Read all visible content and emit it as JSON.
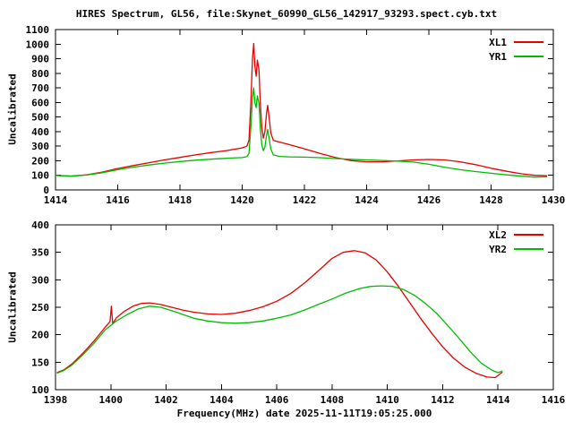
{
  "title": "HIRES Spectrum, GL56, file:Skynet_60990_GL56_142917_93293.spect.cyb.txt",
  "xlabel": "Frequency(MHz) date 2025-11-11T19:05:25.000",
  "colors": {
    "xl": "#e60000",
    "yr": "#00bb00",
    "axis": "#000000",
    "background": "#ffffff"
  },
  "chart_data": [
    {
      "type": "line",
      "panel": "top",
      "ylabel": "Uncalibrated",
      "xlim": [
        1414,
        1430
      ],
      "ylim": [
        0,
        1100
      ],
      "xticks": [
        1414,
        1416,
        1418,
        1420,
        1422,
        1424,
        1426,
        1428,
        1430
      ],
      "yticks": [
        0,
        100,
        200,
        300,
        400,
        500,
        600,
        700,
        800,
        900,
        1000,
        1100
      ],
      "grid": false,
      "legend_position": "top-right",
      "legend": [
        {
          "label": "XL1",
          "color": "#e60000"
        },
        {
          "label": "YR1",
          "color": "#00bb00"
        }
      ],
      "series": [
        {
          "name": "XL1",
          "color": "#e60000",
          "points": [
            [
              1414.0,
              100
            ],
            [
              1414.25,
              97
            ],
            [
              1414.5,
              95
            ],
            [
              1415,
              104
            ],
            [
              1415.5,
              122
            ],
            [
              1416,
              147
            ],
            [
              1416.5,
              167
            ],
            [
              1417,
              187
            ],
            [
              1417.5,
              206
            ],
            [
              1418,
              223
            ],
            [
              1418.5,
              240
            ],
            [
              1419,
              256
            ],
            [
              1419.5,
              270
            ],
            [
              1420.0,
              288
            ],
            [
              1420.15,
              300
            ],
            [
              1420.22,
              340
            ],
            [
              1420.28,
              600
            ],
            [
              1420.33,
              900
            ],
            [
              1420.37,
              1005
            ],
            [
              1420.41,
              850
            ],
            [
              1420.45,
              780
            ],
            [
              1420.49,
              890
            ],
            [
              1420.54,
              820
            ],
            [
              1420.58,
              600
            ],
            [
              1420.63,
              430
            ],
            [
              1420.68,
              355
            ],
            [
              1420.73,
              400
            ],
            [
              1420.78,
              520
            ],
            [
              1420.82,
              580
            ],
            [
              1420.87,
              490
            ],
            [
              1420.92,
              390
            ],
            [
              1421.0,
              340
            ],
            [
              1421.2,
              328
            ],
            [
              1421.5,
              312
            ],
            [
              1422,
              282
            ],
            [
              1422.5,
              250
            ],
            [
              1423,
              222
            ],
            [
              1423.5,
              201
            ],
            [
              1424,
              193
            ],
            [
              1424.5,
              193
            ],
            [
              1425,
              199
            ],
            [
              1425.5,
              206
            ],
            [
              1426,
              209
            ],
            [
              1426.5,
              206
            ],
            [
              1427,
              193
            ],
            [
              1427.5,
              173
            ],
            [
              1428,
              149
            ],
            [
              1428.5,
              128
            ],
            [
              1429,
              110
            ],
            [
              1429.4,
              100
            ],
            [
              1429.8,
              97
            ]
          ]
        },
        {
          "name": "YR1",
          "color": "#00bb00",
          "points": [
            [
              1414.0,
              99
            ],
            [
              1414.25,
              96
            ],
            [
              1414.5,
              94
            ],
            [
              1415,
              102
            ],
            [
              1415.5,
              118
            ],
            [
              1416,
              139
            ],
            [
              1416.5,
              156
            ],
            [
              1417,
              171
            ],
            [
              1417.5,
              184
            ],
            [
              1418,
              195
            ],
            [
              1418.5,
              204
            ],
            [
              1419,
              211
            ],
            [
              1419.5,
              217
            ],
            [
              1420.0,
              222
            ],
            [
              1420.15,
              228
            ],
            [
              1420.22,
              250
            ],
            [
              1420.28,
              430
            ],
            [
              1420.33,
              630
            ],
            [
              1420.37,
              700
            ],
            [
              1420.41,
              600
            ],
            [
              1420.45,
              565
            ],
            [
              1420.49,
              645
            ],
            [
              1420.54,
              590
            ],
            [
              1420.58,
              430
            ],
            [
              1420.63,
              310
            ],
            [
              1420.68,
              270
            ],
            [
              1420.73,
              295
            ],
            [
              1420.78,
              370
            ],
            [
              1420.82,
              415
            ],
            [
              1420.87,
              350
            ],
            [
              1420.92,
              280
            ],
            [
              1421.0,
              240
            ],
            [
              1421.2,
              230
            ],
            [
              1421.5,
              227
            ],
            [
              1422,
              225
            ],
            [
              1422.5,
              221
            ],
            [
              1423,
              215
            ],
            [
              1423.7,
              208
            ],
            [
              1424.5,
              202
            ],
            [
              1425,
              198
            ],
            [
              1425.5,
              191
            ],
            [
              1426,
              176
            ],
            [
              1426.5,
              156
            ],
            [
              1427,
              139
            ],
            [
              1427.5,
              126
            ],
            [
              1428,
              114
            ],
            [
              1428.5,
              103
            ],
            [
              1429,
              94
            ],
            [
              1429.4,
              88
            ],
            [
              1429.8,
              90
            ]
          ]
        }
      ]
    },
    {
      "type": "line",
      "panel": "bottom",
      "ylabel": "Uncalibrated",
      "xlim": [
        1398,
        1416
      ],
      "ylim": [
        100,
        400
      ],
      "xticks": [
        1398,
        1400,
        1402,
        1404,
        1406,
        1408,
        1410,
        1412,
        1414,
        1416
      ],
      "yticks": [
        100,
        150,
        200,
        250,
        300,
        350,
        400
      ],
      "grid": false,
      "legend_position": "top-right",
      "legend": [
        {
          "label": "XL2",
          "color": "#e60000"
        },
        {
          "label": "YR2",
          "color": "#00bb00"
        }
      ],
      "series": [
        {
          "name": "XL2",
          "color": "#e60000",
          "points": [
            [
              1398.05,
              131
            ],
            [
              1398.3,
              136
            ],
            [
              1398.6,
              147
            ],
            [
              1399,
              167
            ],
            [
              1399.4,
              189
            ],
            [
              1399.8,
              214
            ],
            [
              1399.97,
              224
            ],
            [
              1400.02,
              252
            ],
            [
              1400.07,
              220
            ],
            [
              1400.2,
              231
            ],
            [
              1400.5,
              243
            ],
            [
              1400.8,
              252
            ],
            [
              1401.1,
              257
            ],
            [
              1401.4,
              258
            ],
            [
              1401.8,
              255
            ],
            [
              1402.2,
              250
            ],
            [
              1402.6,
              245
            ],
            [
              1403,
              241
            ],
            [
              1403.5,
              238
            ],
            [
              1404,
              237
            ],
            [
              1404.5,
              239
            ],
            [
              1405,
              244
            ],
            [
              1405.5,
              251
            ],
            [
              1406,
              261
            ],
            [
              1406.5,
              275
            ],
            [
              1407,
              294
            ],
            [
              1407.5,
              316
            ],
            [
              1408,
              339
            ],
            [
              1408.4,
              350
            ],
            [
              1408.8,
              353
            ],
            [
              1409.2,
              349
            ],
            [
              1409.6,
              336
            ],
            [
              1410,
              314
            ],
            [
              1410.4,
              288
            ],
            [
              1410.8,
              259
            ],
            [
              1411.2,
              230
            ],
            [
              1411.6,
              203
            ],
            [
              1412,
              178
            ],
            [
              1412.4,
              157
            ],
            [
              1412.8,
              141
            ],
            [
              1413.2,
              130
            ],
            [
              1413.6,
              123
            ],
            [
              1413.9,
              122
            ],
            [
              1414.16,
              132
            ]
          ]
        },
        {
          "name": "YR2",
          "color": "#00bb00",
          "points": [
            [
              1398.05,
              130
            ],
            [
              1398.3,
              135
            ],
            [
              1398.6,
              145
            ],
            [
              1399,
              164
            ],
            [
              1399.4,
              185
            ],
            [
              1399.8,
              209
            ],
            [
              1400.2,
              225
            ],
            [
              1400.6,
              237
            ],
            [
              1401,
              247
            ],
            [
              1401.4,
              252
            ],
            [
              1401.8,
              250
            ],
            [
              1402.2,
              244
            ],
            [
              1402.6,
              237
            ],
            [
              1403,
              230
            ],
            [
              1403.5,
              225
            ],
            [
              1404,
              222
            ],
            [
              1404.5,
              221
            ],
            [
              1405,
              222
            ],
            [
              1405.5,
              225
            ],
            [
              1406,
              230
            ],
            [
              1406.5,
              236
            ],
            [
              1407,
              245
            ],
            [
              1407.5,
              255
            ],
            [
              1408,
              265
            ],
            [
              1408.5,
              276
            ],
            [
              1409,
              284
            ],
            [
              1409.4,
              288
            ],
            [
              1409.8,
              289
            ],
            [
              1410.2,
              288
            ],
            [
              1410.6,
              282
            ],
            [
              1411,
              271
            ],
            [
              1411.4,
              256
            ],
            [
              1411.8,
              238
            ],
            [
              1412.2,
              216
            ],
            [
              1412.6,
              193
            ],
            [
              1413,
              169
            ],
            [
              1413.4,
              148
            ],
            [
              1413.8,
              135
            ],
            [
              1414.0,
              131
            ],
            [
              1414.16,
              134
            ]
          ]
        }
      ]
    }
  ]
}
